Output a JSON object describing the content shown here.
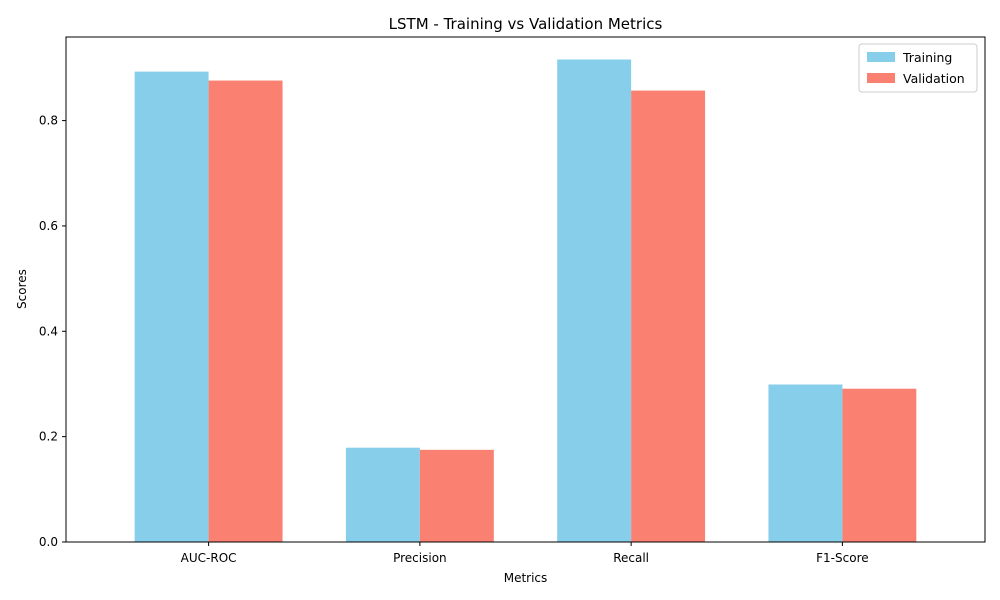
{
  "chart_data": {
    "type": "bar",
    "title": "LSTM - Training vs Validation Metrics",
    "xlabel": "Metrics",
    "ylabel": "Scores",
    "categories": [
      "AUC-ROC",
      "Precision",
      "Recall",
      "F1-Score"
    ],
    "series": [
      {
        "name": "Training",
        "color": "#87CEEB",
        "values": [
          0.893,
          0.179,
          0.916,
          0.299
        ]
      },
      {
        "name": "Validation",
        "color": "#FA8072",
        "values": [
          0.876,
          0.175,
          0.857,
          0.291
        ]
      }
    ],
    "ylim": [
      0,
      0.9587
    ],
    "yticks": [
      "0.0",
      "0.2",
      "0.4",
      "0.6",
      "0.8"
    ],
    "grid": false,
    "legend": "top-right"
  }
}
